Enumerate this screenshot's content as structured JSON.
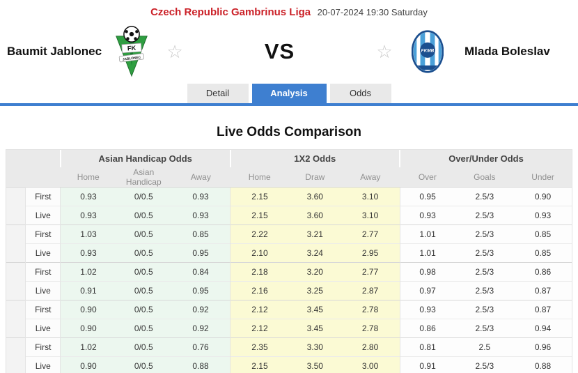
{
  "header": {
    "league": "Czech Republic Gambrinus Liga",
    "datetime": "20-07-2024 19:30 Saturday",
    "home_team": "Baumit Jablonec",
    "away_team": "Mlada Boleslav",
    "vs_label": "VS",
    "home_logo": {
      "line1": "FK",
      "line2": "JABLONEC"
    },
    "away_logo": {
      "text": "FKMB"
    },
    "favorite_star": "☆"
  },
  "tabs": [
    {
      "label": "Detail",
      "active": false
    },
    {
      "label": "Analysis",
      "active": true
    },
    {
      "label": "Odds",
      "active": false
    }
  ],
  "section_title": "Live Odds Comparison",
  "odds_table": {
    "groups": [
      "Asian Handicap Odds",
      "1X2 Odds",
      "Over/Under Odds"
    ],
    "sub_headers": [
      "Home",
      "Asian Handicap",
      "Away",
      "Home",
      "Draw",
      "Away",
      "Over",
      "Goals",
      "Under"
    ],
    "rows": [
      {
        "type": "First",
        "ah": [
          "0.93",
          "0/0.5",
          "0.93"
        ],
        "x12": [
          "2.15",
          "3.60",
          "3.10"
        ],
        "ou": [
          "0.95",
          "2.5/3",
          "0.90"
        ]
      },
      {
        "type": "Live",
        "ah": [
          "0.93",
          "0/0.5",
          "0.93"
        ],
        "x12": [
          "2.15",
          "3.60",
          "3.10"
        ],
        "ou": [
          "0.93",
          "2.5/3",
          "0.93"
        ]
      },
      {
        "type": "First",
        "ah": [
          "1.03",
          "0/0.5",
          "0.85"
        ],
        "x12": [
          "2.22",
          "3.21",
          "2.77"
        ],
        "ou": [
          "1.01",
          "2.5/3",
          "0.85"
        ]
      },
      {
        "type": "Live",
        "ah": [
          "0.93",
          "0/0.5",
          "0.95"
        ],
        "x12": [
          "2.10",
          "3.24",
          "2.95"
        ],
        "ou": [
          "1.01",
          "2.5/3",
          "0.85"
        ]
      },
      {
        "type": "First",
        "ah": [
          "1.02",
          "0/0.5",
          "0.84"
        ],
        "x12": [
          "2.18",
          "3.20",
          "2.77"
        ],
        "ou": [
          "0.98",
          "2.5/3",
          "0.86"
        ]
      },
      {
        "type": "Live",
        "ah": [
          "0.91",
          "0/0.5",
          "0.95"
        ],
        "x12": [
          "2.16",
          "3.25",
          "2.87"
        ],
        "ou": [
          "0.97",
          "2.5/3",
          "0.87"
        ]
      },
      {
        "type": "First",
        "ah": [
          "0.90",
          "0/0.5",
          "0.92"
        ],
        "x12": [
          "2.12",
          "3.45",
          "2.78"
        ],
        "ou": [
          "0.93",
          "2.5/3",
          "0.87"
        ]
      },
      {
        "type": "Live",
        "ah": [
          "0.90",
          "0/0.5",
          "0.92"
        ],
        "x12": [
          "2.12",
          "3.45",
          "2.78"
        ],
        "ou": [
          "0.86",
          "2.5/3",
          "0.94"
        ]
      },
      {
        "type": "First",
        "ah": [
          "1.02",
          "0/0.5",
          "0.76"
        ],
        "x12": [
          "2.35",
          "3.30",
          "2.80"
        ],
        "ou": [
          "0.81",
          "2.5",
          "0.96"
        ]
      },
      {
        "type": "Live",
        "ah": [
          "0.90",
          "0/0.5",
          "0.88"
        ],
        "x12": [
          "2.15",
          "3.50",
          "3.00"
        ],
        "ou": [
          "0.91",
          "2.5/3",
          "0.88"
        ]
      }
    ]
  },
  "colors": {
    "accent_blue": "#3e7fd0",
    "league_red": "#cb2128",
    "ah_bg": "#ecf7ef",
    "x12_bg": "#fbfad4",
    "header_bg": "#eaeaea",
    "home_logo_green": "#2f9e41",
    "away_logo_blue": "#1b4f8f",
    "away_logo_stripe": "#4aa0d9"
  }
}
